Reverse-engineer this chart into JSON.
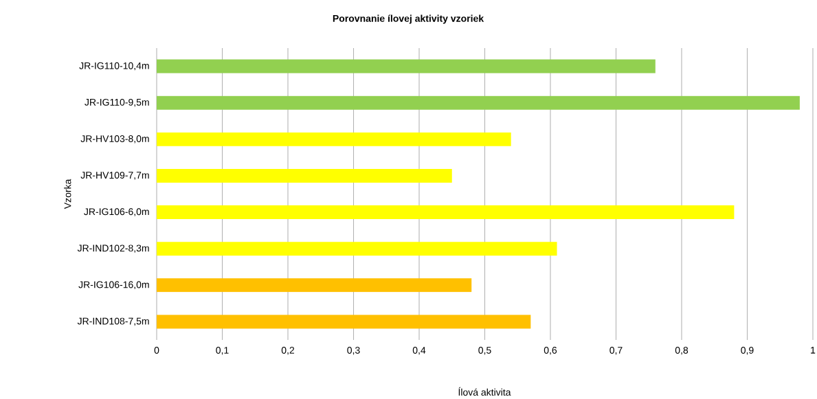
{
  "chart_data": {
    "type": "bar",
    "orientation": "horizontal",
    "title": "Porovnanie ílovej aktivity vzoriek",
    "xlabel": "Ílová aktivita",
    "ylabel": "Vzorka",
    "categories": [
      "JR-IG110-10,4m",
      "JR-IG110-9,5m",
      "JR-HV103-8,0m",
      "JR-HV109-7,7m",
      "JR-IG106-6,0m",
      "JR-IND102-8,3m",
      "JR-IG106-16,0m",
      "JR-IND108-7,5m"
    ],
    "values": [
      0.76,
      0.98,
      0.54,
      0.45,
      0.88,
      0.61,
      0.48,
      0.57
    ],
    "colors": [
      "#92d050",
      "#92d050",
      "#ffff00",
      "#ffff00",
      "#ffff00",
      "#ffff00",
      "#ffc000",
      "#ffc000"
    ],
    "xlim": [
      0,
      1
    ],
    "xticks": [
      0,
      {
        "value": 0.1,
        "label": "0,1"
      },
      {
        "value": 0.2,
        "label": "0,2"
      },
      {
        "value": 0.3,
        "label": "0,3"
      },
      {
        "value": 0.4,
        "label": "0,4"
      },
      {
        "value": 0.5,
        "label": "0,5"
      },
      {
        "value": 0.6,
        "label": "0,6"
      },
      {
        "value": 0.7,
        "label": "0,7"
      },
      {
        "value": 0.8,
        "label": "0,8"
      },
      {
        "value": 0.9,
        "label": "0,9"
      },
      1
    ],
    "grid": "x"
  }
}
